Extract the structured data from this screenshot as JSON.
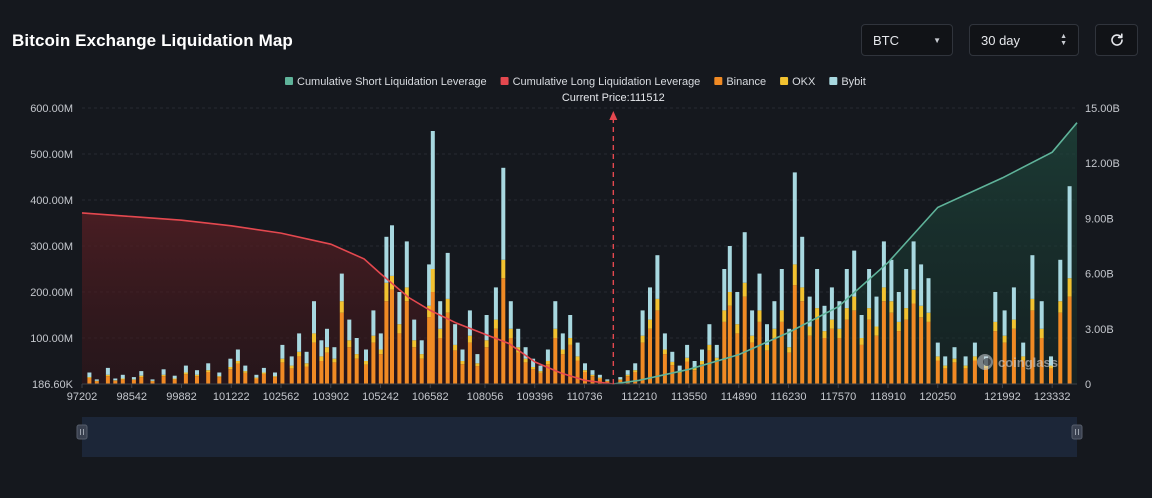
{
  "header": {
    "title": "Bitcoin Exchange Liquidation Map",
    "symbol_value": "BTC",
    "range_value": "30 day",
    "refresh_icon": "refresh-icon"
  },
  "colors": {
    "short_cum": "#5fb39a",
    "long_cum": "#e4484f",
    "binance": "#f08a24",
    "okx": "#f2c230",
    "bybit": "#a8d8e0"
  },
  "watermark": "coinglass",
  "chart_data": {
    "type": "bar",
    "legend_position": "top-center",
    "legend": [
      {
        "key": "short_cum",
        "label": "Cumulative Short Liquidation Leverage"
      },
      {
        "key": "long_cum",
        "label": "Cumulative Long Liquidation Leverage"
      },
      {
        "key": "binance",
        "label": "Binance"
      },
      {
        "key": "okx",
        "label": "OKX"
      },
      {
        "key": "bybit",
        "label": "Bybit"
      }
    ],
    "current_price_label": "Current Price:111512",
    "current_price": 111512,
    "x_range": [
      97202,
      124000
    ],
    "x_ticks": [
      "97202",
      "98542",
      "99882",
      "101222",
      "102562",
      "103902",
      "105242",
      "106582",
      "108056",
      "109396",
      "110736",
      "112210",
      "113550",
      "114890",
      "116230",
      "117570",
      "118910",
      "120250",
      "121992",
      "123332"
    ],
    "y_left_ticks": [
      "186.60K",
      "100.00M",
      "200.00M",
      "300.00M",
      "400.00M",
      "500.00M",
      "600.00M"
    ],
    "y_left_range_millions": [
      0,
      600
    ],
    "y_right_ticks": [
      "0",
      "3.00B",
      "6.00B",
      "9.00B",
      "12.00B",
      "15.00B"
    ],
    "y_right_range_billions": [
      0,
      15
    ],
    "bars_millions": [
      {
        "price": 97400,
        "total": 25,
        "okx": 2,
        "bybit": 10
      },
      {
        "price": 97600,
        "total": 10,
        "okx": 1,
        "bybit": 3
      },
      {
        "price": 97900,
        "total": 35,
        "okx": 3,
        "bybit": 15
      },
      {
        "price": 98100,
        "total": 12,
        "okx": 1,
        "bybit": 4
      },
      {
        "price": 98300,
        "total": 20,
        "okx": 2,
        "bybit": 8
      },
      {
        "price": 98600,
        "total": 15,
        "okx": 1,
        "bybit": 5
      },
      {
        "price": 98800,
        "total": 28,
        "okx": 3,
        "bybit": 10
      },
      {
        "price": 99100,
        "total": 10,
        "okx": 1,
        "bybit": 3
      },
      {
        "price": 99400,
        "total": 32,
        "okx": 3,
        "bybit": 12
      },
      {
        "price": 99700,
        "total": 18,
        "okx": 2,
        "bybit": 6
      },
      {
        "price": 100000,
        "total": 40,
        "okx": 4,
        "bybit": 15
      },
      {
        "price": 100300,
        "total": 30,
        "okx": 3,
        "bybit": 10
      },
      {
        "price": 100600,
        "total": 45,
        "okx": 4,
        "bybit": 15
      },
      {
        "price": 100900,
        "total": 25,
        "okx": 2,
        "bybit": 8
      },
      {
        "price": 101200,
        "total": 55,
        "okx": 5,
        "bybit": 18
      },
      {
        "price": 101400,
        "total": 75,
        "okx": 6,
        "bybit": 25
      },
      {
        "price": 101600,
        "total": 40,
        "okx": 4,
        "bybit": 12
      },
      {
        "price": 101900,
        "total": 20,
        "okx": 2,
        "bybit": 6
      },
      {
        "price": 102100,
        "total": 35,
        "okx": 3,
        "bybit": 10
      },
      {
        "price": 102400,
        "total": 25,
        "okx": 2,
        "bybit": 8
      },
      {
        "price": 102600,
        "total": 85,
        "okx": 8,
        "bybit": 30
      },
      {
        "price": 102850,
        "total": 60,
        "okx": 6,
        "bybit": 20
      },
      {
        "price": 103050,
        "total": 110,
        "okx": 10,
        "bybit": 40
      },
      {
        "price": 103250,
        "total": 70,
        "okx": 7,
        "bybit": 25
      },
      {
        "price": 103450,
        "total": 180,
        "okx": 20,
        "bybit": 70
      },
      {
        "price": 103650,
        "total": 95,
        "okx": 10,
        "bybit": 35
      },
      {
        "price": 103800,
        "total": 120,
        "okx": 12,
        "bybit": 40
      },
      {
        "price": 104000,
        "total": 80,
        "okx": 8,
        "bybit": 25
      },
      {
        "price": 104200,
        "total": 240,
        "okx": 25,
        "bybit": 60
      },
      {
        "price": 104400,
        "total": 140,
        "okx": 15,
        "bybit": 45
      },
      {
        "price": 104600,
        "total": 100,
        "okx": 10,
        "bybit": 35
      },
      {
        "price": 104850,
        "total": 75,
        "okx": 8,
        "bybit": 25
      },
      {
        "price": 105050,
        "total": 160,
        "okx": 15,
        "bybit": 55
      },
      {
        "price": 105250,
        "total": 110,
        "okx": 10,
        "bybit": 35
      },
      {
        "price": 105400,
        "total": 320,
        "okx": 40,
        "bybit": 100
      },
      {
        "price": 105550,
        "total": 345,
        "okx": 30,
        "bybit": 110
      },
      {
        "price": 105750,
        "total": 200,
        "okx": 20,
        "bybit": 70
      },
      {
        "price": 105950,
        "total": 310,
        "okx": 30,
        "bybit": 100
      },
      {
        "price": 106150,
        "total": 140,
        "okx": 15,
        "bybit": 45
      },
      {
        "price": 106350,
        "total": 95,
        "okx": 10,
        "bybit": 30
      },
      {
        "price": 106550,
        "total": 260,
        "okx": 25,
        "bybit": 90
      },
      {
        "price": 106650,
        "total": 550,
        "okx": 50,
        "bybit": 300
      },
      {
        "price": 106850,
        "total": 180,
        "okx": 20,
        "bybit": 60
      },
      {
        "price": 107050,
        "total": 285,
        "okx": 30,
        "bybit": 100
      },
      {
        "price": 107250,
        "total": 130,
        "okx": 12,
        "bybit": 45
      },
      {
        "price": 107450,
        "total": 75,
        "okx": 7,
        "bybit": 25
      },
      {
        "price": 107650,
        "total": 160,
        "okx": 15,
        "bybit": 55
      },
      {
        "price": 107850,
        "total": 65,
        "okx": 6,
        "bybit": 20
      },
      {
        "price": 108100,
        "total": 150,
        "okx": 15,
        "bybit": 55
      },
      {
        "price": 108350,
        "total": 210,
        "okx": 20,
        "bybit": 70
      },
      {
        "price": 108550,
        "total": 470,
        "okx": 40,
        "bybit": 200
      },
      {
        "price": 108750,
        "total": 180,
        "okx": 20,
        "bybit": 60
      },
      {
        "price": 108950,
        "total": 120,
        "okx": 12,
        "bybit": 40
      },
      {
        "price": 109150,
        "total": 80,
        "okx": 8,
        "bybit": 25
      },
      {
        "price": 109350,
        "total": 55,
        "okx": 5,
        "bybit": 18
      },
      {
        "price": 109550,
        "total": 40,
        "okx": 4,
        "bybit": 12
      },
      {
        "price": 109750,
        "total": 75,
        "okx": 7,
        "bybit": 25
      },
      {
        "price": 109950,
        "total": 180,
        "okx": 20,
        "bybit": 60
      },
      {
        "price": 110150,
        "total": 110,
        "okx": 10,
        "bybit": 35
      },
      {
        "price": 110350,
        "total": 150,
        "okx": 15,
        "bybit": 50
      },
      {
        "price": 110550,
        "total": 90,
        "okx": 9,
        "bybit": 30
      },
      {
        "price": 110750,
        "total": 45,
        "okx": 4,
        "bybit": 15
      },
      {
        "price": 110950,
        "total": 30,
        "okx": 3,
        "bybit": 10
      },
      {
        "price": 111150,
        "total": 20,
        "okx": 2,
        "bybit": 6
      },
      {
        "price": 111350,
        "total": 10,
        "okx": 1,
        "bybit": 3
      },
      {
        "price": 111700,
        "total": 15,
        "okx": 1,
        "bybit": 5
      },
      {
        "price": 111900,
        "total": 30,
        "okx": 3,
        "bybit": 10
      },
      {
        "price": 112100,
        "total": 45,
        "okx": 4,
        "bybit": 15
      },
      {
        "price": 112300,
        "total": 160,
        "okx": 15,
        "bybit": 55
      },
      {
        "price": 112500,
        "total": 210,
        "okx": 20,
        "bybit": 70
      },
      {
        "price": 112700,
        "total": 280,
        "okx": 25,
        "bybit": 95
      },
      {
        "price": 112900,
        "total": 110,
        "okx": 10,
        "bybit": 35
      },
      {
        "price": 113100,
        "total": 70,
        "okx": 7,
        "bybit": 22
      },
      {
        "price": 113300,
        "total": 40,
        "okx": 4,
        "bybit": 12
      },
      {
        "price": 113500,
        "total": 85,
        "okx": 8,
        "bybit": 28
      },
      {
        "price": 113700,
        "total": 50,
        "okx": 5,
        "bybit": 15
      },
      {
        "price": 113900,
        "total": 75,
        "okx": 7,
        "bybit": 25
      },
      {
        "price": 114100,
        "total": 130,
        "okx": 12,
        "bybit": 45
      },
      {
        "price": 114300,
        "total": 85,
        "okx": 8,
        "bybit": 28
      },
      {
        "price": 114500,
        "total": 250,
        "okx": 25,
        "bybit": 90
      },
      {
        "price": 114650,
        "total": 300,
        "okx": 30,
        "bybit": 100
      },
      {
        "price": 114850,
        "total": 200,
        "okx": 20,
        "bybit": 70
      },
      {
        "price": 115050,
        "total": 330,
        "okx": 30,
        "bybit": 110
      },
      {
        "price": 115250,
        "total": 160,
        "okx": 15,
        "bybit": 55
      },
      {
        "price": 115450,
        "total": 240,
        "okx": 25,
        "bybit": 80
      },
      {
        "price": 115650,
        "total": 130,
        "okx": 12,
        "bybit": 45
      },
      {
        "price": 115850,
        "total": 180,
        "okx": 20,
        "bybit": 60
      },
      {
        "price": 116050,
        "total": 250,
        "okx": 25,
        "bybit": 90
      },
      {
        "price": 116250,
        "total": 120,
        "okx": 12,
        "bybit": 40
      },
      {
        "price": 116400,
        "total": 460,
        "okx": 45,
        "bybit": 200
      },
      {
        "price": 116600,
        "total": 320,
        "okx": 30,
        "bybit": 110
      },
      {
        "price": 116800,
        "total": 190,
        "okx": 20,
        "bybit": 65
      },
      {
        "price": 117000,
        "total": 250,
        "okx": 25,
        "bybit": 85
      },
      {
        "price": 117200,
        "total": 170,
        "okx": 15,
        "bybit": 55
      },
      {
        "price": 117400,
        "total": 210,
        "okx": 20,
        "bybit": 70
      },
      {
        "price": 117600,
        "total": 180,
        "okx": 20,
        "bybit": 60
      },
      {
        "price": 117800,
        "total": 250,
        "okx": 25,
        "bybit": 85
      },
      {
        "price": 118000,
        "total": 290,
        "okx": 30,
        "bybit": 100
      },
      {
        "price": 118200,
        "total": 150,
        "okx": 15,
        "bybit": 50
      },
      {
        "price": 118400,
        "total": 250,
        "okx": 25,
        "bybit": 85
      },
      {
        "price": 118600,
        "total": 190,
        "okx": 20,
        "bybit": 65
      },
      {
        "price": 118800,
        "total": 310,
        "okx": 30,
        "bybit": 100
      },
      {
        "price": 119000,
        "total": 270,
        "okx": 25,
        "bybit": 90
      },
      {
        "price": 119200,
        "total": 200,
        "okx": 20,
        "bybit": 65
      },
      {
        "price": 119400,
        "total": 250,
        "okx": 25,
        "bybit": 85
      },
      {
        "price": 119600,
        "total": 310,
        "okx": 30,
        "bybit": 105
      },
      {
        "price": 119800,
        "total": 260,
        "okx": 25,
        "bybit": 90
      },
      {
        "price": 120000,
        "total": 230,
        "okx": 20,
        "bybit": 75
      },
      {
        "price": 120250,
        "total": 90,
        "okx": 9,
        "bybit": 30
      },
      {
        "price": 120450,
        "total": 60,
        "okx": 6,
        "bybit": 20
      },
      {
        "price": 120700,
        "total": 80,
        "okx": 8,
        "bybit": 25
      },
      {
        "price": 121000,
        "total": 60,
        "okx": 6,
        "bybit": 20
      },
      {
        "price": 121250,
        "total": 90,
        "okx": 9,
        "bybit": 30
      },
      {
        "price": 121550,
        "total": 60,
        "okx": 6,
        "bybit": 20
      },
      {
        "price": 121800,
        "total": 200,
        "okx": 20,
        "bybit": 65
      },
      {
        "price": 122050,
        "total": 160,
        "okx": 15,
        "bybit": 55
      },
      {
        "price": 122300,
        "total": 210,
        "okx": 20,
        "bybit": 70
      },
      {
        "price": 122550,
        "total": 90,
        "okx": 9,
        "bybit": 30
      },
      {
        "price": 122800,
        "total": 280,
        "okx": 25,
        "bybit": 95
      },
      {
        "price": 123050,
        "total": 180,
        "okx": 20,
        "bybit": 60
      },
      {
        "price": 123300,
        "total": 60,
        "okx": 6,
        "bybit": 20
      },
      {
        "price": 123550,
        "total": 270,
        "okx": 25,
        "bybit": 90
      },
      {
        "price": 123800,
        "total": 430,
        "okx": 40,
        "bybit": 200
      }
    ],
    "long_cum_billions": [
      {
        "price": 97202,
        "value": 9.3
      },
      {
        "price": 98542,
        "value": 9.1
      },
      {
        "price": 99882,
        "value": 8.9
      },
      {
        "price": 101222,
        "value": 8.6
      },
      {
        "price": 102562,
        "value": 8.2
      },
      {
        "price": 103902,
        "value": 7.6
      },
      {
        "price": 104800,
        "value": 6.8
      },
      {
        "price": 105242,
        "value": 6.0
      },
      {
        "price": 106000,
        "value": 4.7
      },
      {
        "price": 106582,
        "value": 4.0
      },
      {
        "price": 107300,
        "value": 3.3
      },
      {
        "price": 108056,
        "value": 2.7
      },
      {
        "price": 108700,
        "value": 2.2
      },
      {
        "price": 109396,
        "value": 1.2
      },
      {
        "price": 110100,
        "value": 0.6
      },
      {
        "price": 110736,
        "value": 0.2
      },
      {
        "price": 111512,
        "value": 0.0
      }
    ],
    "short_cum_billions": [
      {
        "price": 111512,
        "value": 0.0
      },
      {
        "price": 112210,
        "value": 0.2
      },
      {
        "price": 113550,
        "value": 0.8
      },
      {
        "price": 114890,
        "value": 1.6
      },
      {
        "price": 116230,
        "value": 2.8
      },
      {
        "price": 117570,
        "value": 4.2
      },
      {
        "price": 118910,
        "value": 6.6
      },
      {
        "price": 120250,
        "value": 9.6
      },
      {
        "price": 121992,
        "value": 11.2
      },
      {
        "price": 123332,
        "value": 12.6
      },
      {
        "price": 124000,
        "value": 14.2
      }
    ]
  }
}
